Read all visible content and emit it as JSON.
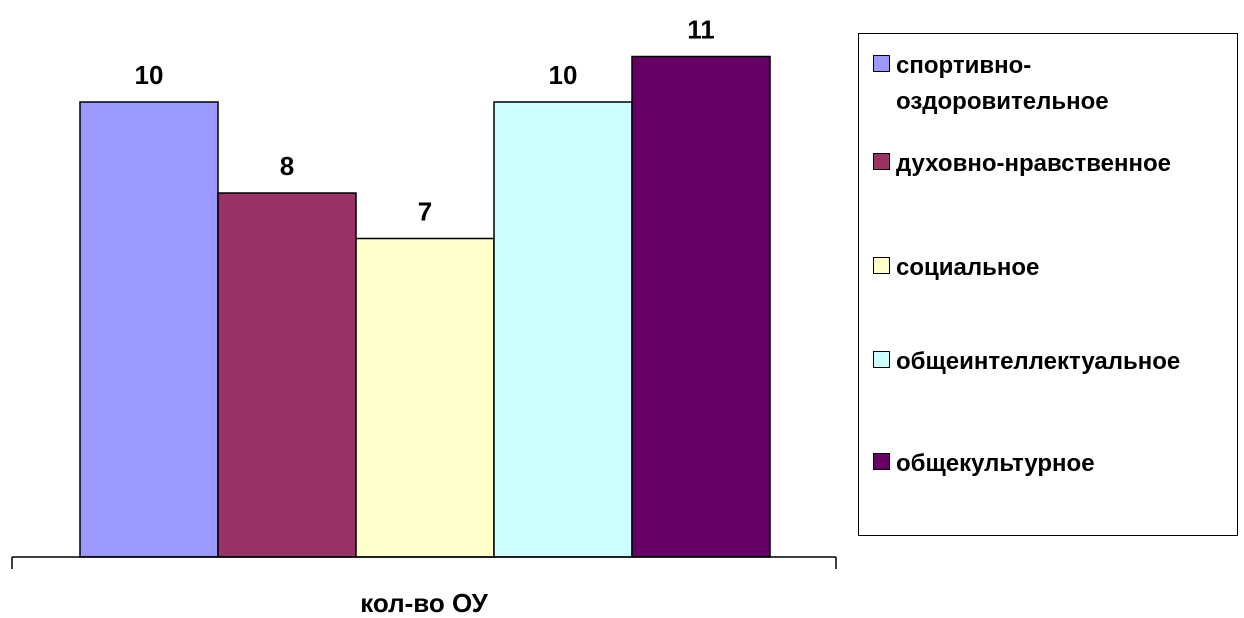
{
  "chart_data": {
    "type": "bar",
    "categories": [
      "кол-во ОУ"
    ],
    "series": [
      {
        "name": "спортивно-оздоровительное",
        "values": [
          10
        ],
        "color": "#9999FF"
      },
      {
        "name": "духовно-нравственное",
        "values": [
          8
        ],
        "color": "#993366"
      },
      {
        "name": "социальное",
        "values": [
          7
        ],
        "color": "#FFFFCC"
      },
      {
        "name": "общеинтеллектуальное",
        "values": [
          10
        ],
        "color": "#CCFFFF"
      },
      {
        "name": "общекультурное",
        "values": [
          11
        ],
        "color": "#660066"
      }
    ],
    "ylim": [
      0,
      12
    ],
    "grid": false,
    "legend_position": "right",
    "show_data_labels": true
  }
}
